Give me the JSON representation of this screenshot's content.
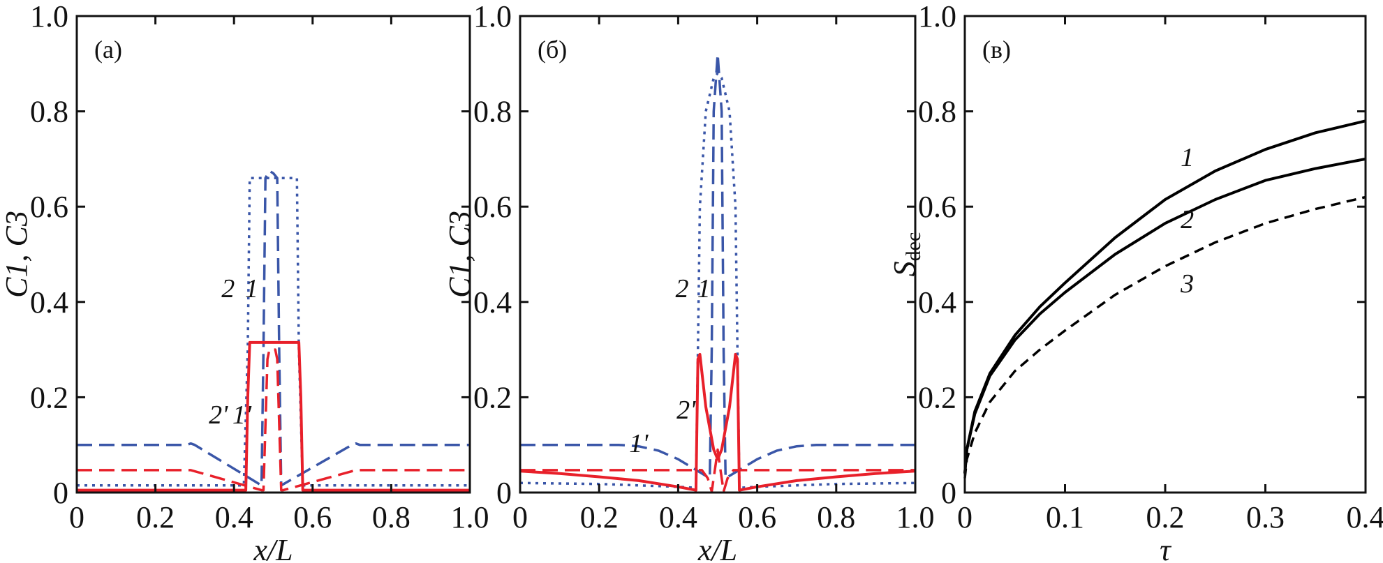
{
  "chart_data": [
    {
      "type": "line",
      "panel_label": "(a)",
      "xlabel": "x/L",
      "ylabel": "C1, C3",
      "xlim": [
        0,
        1.0
      ],
      "ylim": [
        0,
        1.0
      ],
      "xticks": [
        "0",
        "0.2",
        "0.4",
        "0.6",
        "0.8",
        "1.0"
      ],
      "yticks": [
        "0",
        "0.2",
        "0.4",
        "0.6",
        "0.8",
        "1.0"
      ],
      "grid": false,
      "series": [
        {
          "name": "1",
          "color": "#3a56a8",
          "style": "dashed",
          "x": [
            0,
            0.28,
            0.29,
            0.3,
            0.47,
            0.475,
            0.48,
            0.49,
            0.5,
            0.51,
            0.515,
            0.52,
            0.7,
            0.71,
            0.72,
            1.0
          ],
          "y": [
            0.1,
            0.1,
            0.103,
            0.1,
            0.015,
            0.3,
            0.66,
            0.675,
            0.67,
            0.66,
            0.3,
            0.015,
            0.1,
            0.103,
            0.1,
            0.1
          ]
        },
        {
          "name": "2",
          "color": "#3a56a8",
          "style": "dotted",
          "x": [
            0,
            0.425,
            0.435,
            0.44,
            0.56,
            0.565,
            0.575,
            1.0
          ],
          "y": [
            0.015,
            0.015,
            0.3,
            0.66,
            0.66,
            0.3,
            0.015,
            0.015
          ]
        },
        {
          "name": "1'",
          "color": "#e8202a",
          "style": "dashed",
          "x": [
            0,
            0.29,
            0.47,
            0.475,
            0.485,
            0.49,
            0.505,
            0.51,
            0.52,
            0.525,
            0.71,
            0.72,
            1.0
          ],
          "y": [
            0.047,
            0.047,
            0.005,
            0.005,
            0.28,
            0.3,
            0.3,
            0.28,
            0.005,
            0.005,
            0.047,
            0.047,
            0.047
          ]
        },
        {
          "name": "2'",
          "color": "#e8202a",
          "style": "solid",
          "x": [
            0,
            0.43,
            0.435,
            0.44,
            0.565,
            0.57,
            0.575,
            1.0
          ],
          "y": [
            0.005,
            0.005,
            0.2,
            0.315,
            0.315,
            0.2,
            0.005,
            0.005
          ]
        }
      ],
      "annotations": [
        {
          "text": "2",
          "x": 0.385,
          "y": 0.41
        },
        {
          "text": "1",
          "x": 0.445,
          "y": 0.41
        },
        {
          "text": "2'",
          "x": 0.36,
          "y": 0.145
        },
        {
          "text": "1'",
          "x": 0.42,
          "y": 0.145
        }
      ]
    },
    {
      "type": "line",
      "panel_label": "(б)",
      "xlabel": "x/L",
      "ylabel": "C1, C3",
      "xlim": [
        0,
        1.0
      ],
      "ylim": [
        0,
        1.0
      ],
      "xticks": [
        "0",
        "0.2",
        "0.4",
        "0.6",
        "0.8",
        "1.0"
      ],
      "yticks": [
        "0",
        "0.2",
        "0.4",
        "0.6",
        "0.8",
        "1.0"
      ],
      "grid": false,
      "series": [
        {
          "name": "1",
          "color": "#3a56a8",
          "style": "dashed",
          "x": [
            0,
            0.25,
            0.3,
            0.35,
            0.4,
            0.45,
            0.48,
            0.485,
            0.49,
            0.5,
            0.51,
            0.515,
            0.52,
            0.55,
            0.6,
            0.65,
            0.7,
            0.75,
            1.0
          ],
          "y": [
            0.1,
            0.1,
            0.097,
            0.088,
            0.07,
            0.045,
            0.03,
            0.3,
            0.8,
            0.92,
            0.8,
            0.3,
            0.03,
            0.045,
            0.07,
            0.088,
            0.097,
            0.1,
            0.1
          ]
        },
        {
          "name": "2",
          "color": "#3a56a8",
          "style": "dotted",
          "x": [
            0,
            0.2,
            0.4,
            0.445,
            0.45,
            0.455,
            0.47,
            0.49,
            0.5,
            0.51,
            0.53,
            0.545,
            0.55,
            0.555,
            0.6,
            0.8,
            1.0
          ],
          "y": [
            0.02,
            0.018,
            0.012,
            0.01,
            0.3,
            0.6,
            0.8,
            0.87,
            0.88,
            0.87,
            0.8,
            0.6,
            0.3,
            0.01,
            0.012,
            0.018,
            0.02
          ]
        },
        {
          "name": "1'",
          "color": "#e8202a",
          "style": "dashed",
          "x": [
            0,
            0.46,
            0.475,
            0.485,
            0.495,
            0.5,
            0.505,
            0.515,
            0.525,
            0.54,
            1.0
          ],
          "y": [
            0.047,
            0.047,
            0.03,
            0.002,
            0.06,
            0.09,
            0.06,
            0.002,
            0.03,
            0.047,
            0.047
          ]
        },
        {
          "name": "2'",
          "color": "#e8202a",
          "style": "solid",
          "x": [
            0,
            0.1,
            0.2,
            0.3,
            0.4,
            0.445,
            0.45,
            0.455,
            0.47,
            0.49,
            0.5,
            0.51,
            0.53,
            0.545,
            0.55,
            0.555,
            0.6,
            0.7,
            0.8,
            0.9,
            1.0
          ],
          "y": [
            0.045,
            0.04,
            0.033,
            0.025,
            0.012,
            0.005,
            0.28,
            0.29,
            0.18,
            0.09,
            0.07,
            0.09,
            0.18,
            0.29,
            0.28,
            0.005,
            0.012,
            0.025,
            0.033,
            0.04,
            0.045
          ]
        }
      ],
      "annotations": [
        {
          "text": "2",
          "x": 0.41,
          "y": 0.41
        },
        {
          "text": "1",
          "x": 0.465,
          "y": 0.41
        },
        {
          "text": "2'",
          "x": 0.42,
          "y": 0.155
        },
        {
          "text": "1'",
          "x": 0.3,
          "y": 0.085
        }
      ]
    },
    {
      "type": "line",
      "panel_label": "(в)",
      "xlabel": "τ",
      "ylabel": "Sdec",
      "ylabel_main": "S",
      "ylabel_sub": "dec",
      "xlim": [
        0,
        0.4
      ],
      "ylim": [
        0,
        1.0
      ],
      "xticks": [
        "0",
        "0.1",
        "0.2",
        "0.3",
        "0.4"
      ],
      "yticks": [
        "0",
        "0.2",
        "0.4",
        "0.6",
        "0.8",
        "1.0"
      ],
      "grid": false,
      "series": [
        {
          "name": "1",
          "color": "#000000",
          "style": "solid",
          "x": [
            0,
            0.002,
            0.01,
            0.025,
            0.05,
            0.075,
            0.1,
            0.15,
            0.2,
            0.25,
            0.3,
            0.35,
            0.4
          ],
          "y": [
            0.04,
            0.09,
            0.17,
            0.25,
            0.33,
            0.39,
            0.44,
            0.535,
            0.615,
            0.675,
            0.72,
            0.755,
            0.78
          ]
        },
        {
          "name": "2",
          "color": "#000000",
          "style": "solid",
          "x": [
            0,
            0.002,
            0.01,
            0.025,
            0.05,
            0.075,
            0.1,
            0.15,
            0.2,
            0.25,
            0.3,
            0.35,
            0.4
          ],
          "y": [
            0.04,
            0.09,
            0.165,
            0.245,
            0.32,
            0.375,
            0.42,
            0.5,
            0.565,
            0.615,
            0.655,
            0.68,
            0.7
          ]
        },
        {
          "name": "3",
          "color": "#000000",
          "style": "dashed",
          "x": [
            0,
            0.002,
            0.01,
            0.025,
            0.05,
            0.075,
            0.1,
            0.15,
            0.2,
            0.25,
            0.3,
            0.35,
            0.4
          ],
          "y": [
            0.03,
            0.07,
            0.125,
            0.19,
            0.255,
            0.3,
            0.34,
            0.415,
            0.475,
            0.525,
            0.565,
            0.595,
            0.62
          ]
        }
      ],
      "annotations": [
        {
          "text": "1",
          "x": 0.222,
          "y": 0.685
        },
        {
          "text": "2",
          "x": 0.222,
          "y": 0.555
        },
        {
          "text": "3",
          "x": 0.222,
          "y": 0.42
        }
      ]
    }
  ]
}
